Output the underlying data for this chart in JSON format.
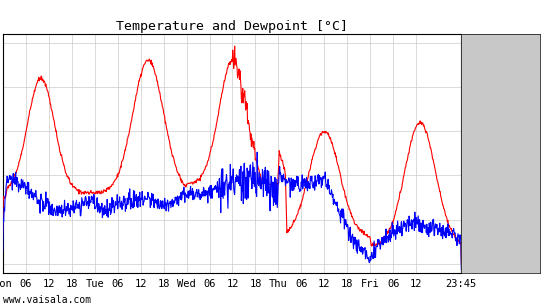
{
  "title": "Temperature and Dewpoint [°C]",
  "watermark": "www.vaisala.com",
  "yticks": [
    5,
    10,
    15,
    20,
    25,
    30
  ],
  "ylim": [
    4,
    31
  ],
  "background_color": "#ffffff",
  "gray_panel_color": "#c8c8c8",
  "grid_color": "#cccccc",
  "temp_color": "#ff0000",
  "dew_color": "#0000ff",
  "linewidth": 0.8,
  "total_hours": 119.75,
  "xtick_positions": [
    0,
    6,
    12,
    18,
    24,
    30,
    36,
    42,
    48,
    54,
    60,
    66,
    72,
    78,
    84,
    90,
    96,
    102,
    108,
    119.75
  ],
  "xtick_labels": [
    "Mon",
    "06",
    "12",
    "18",
    "Tue",
    "06",
    "12",
    "18",
    "Wed",
    "06",
    "12",
    "18",
    "Thu",
    "06",
    "12",
    "18",
    "Fri",
    "06",
    "12",
    "23:45"
  ]
}
